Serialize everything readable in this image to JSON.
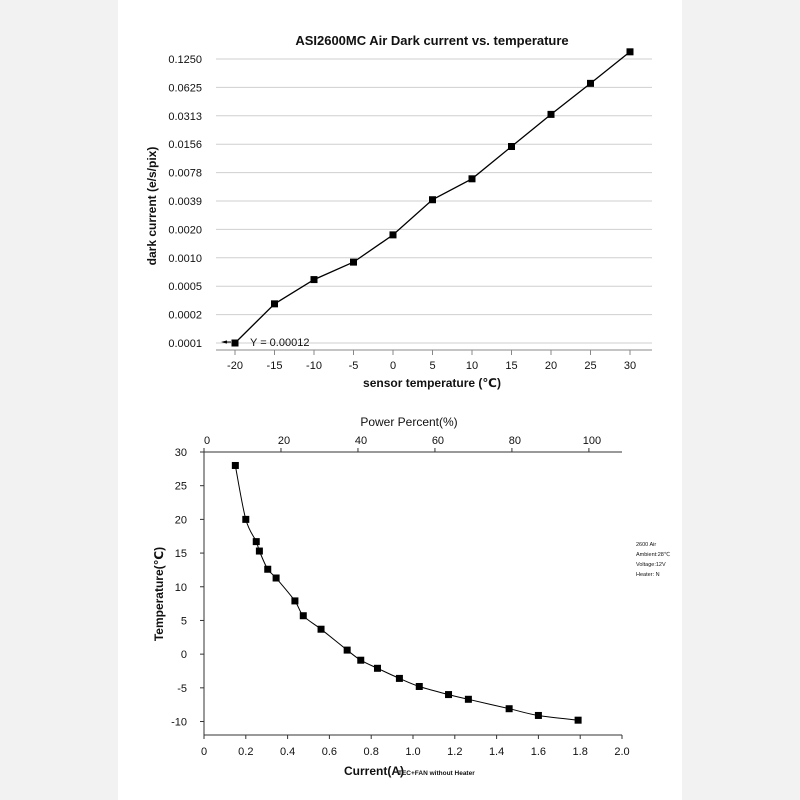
{
  "chart_data": [
    {
      "type": "line",
      "title": "ASI2600MC Air Dark current vs. temperature",
      "xlabel": "sensor temperature (℃)",
      "ylabel": "dark current (e/s/pix)",
      "x_ticks": [
        "-20",
        "-15",
        "-10",
        "-5",
        "0",
        "5",
        "10",
        "15",
        "20",
        "25",
        "30"
      ],
      "y_ticks": [
        "0.0001",
        "0.0002",
        "0.0005",
        "0.0010",
        "0.0020",
        "0.0039",
        "0.0078",
        "0.0156",
        "0.0313",
        "0.0625",
        "0.1250"
      ],
      "y_scale": "log2",
      "grid": "horizontal",
      "x": [
        -20,
        -15,
        -10,
        -5,
        0,
        5,
        10,
        15,
        20,
        25,
        30
      ],
      "y": [
        0.0001,
        0.00026,
        0.00047,
        0.00072,
        0.0014,
        0.0033,
        0.0055,
        0.0121,
        0.0265,
        0.0565,
        0.122
      ],
      "annotation": "Y = 0.00012"
    },
    {
      "type": "scatter",
      "xlabel": "Current(A)",
      "xlabel_note": "TEC+FAN without Heater",
      "ylabel": "Temperature(℃)",
      "top_axis_label": "Power Percent(%)",
      "x_ticks": [
        "0",
        "0.2",
        "0.4",
        "0.6",
        "0.8",
        "1.0",
        "1.2",
        "1.4",
        "1.6",
        "1.8",
        "2.0"
      ],
      "y_ticks": [
        "-10",
        "-5",
        "0",
        "5",
        "10",
        "15",
        "20",
        "25",
        "30"
      ],
      "top_ticks": [
        "0",
        "20",
        "40",
        "60",
        "80",
        "100"
      ],
      "xlim": [
        0,
        2.0
      ],
      "ylim": [
        -12,
        30
      ],
      "top_xlim": [
        0,
        108.6
      ],
      "grid": false,
      "x": [
        0.15,
        0.2,
        0.25,
        0.265,
        0.305,
        0.345,
        0.435,
        0.475,
        0.56,
        0.685,
        0.75,
        0.83,
        0.935,
        1.03,
        1.17,
        1.265,
        1.46,
        1.6,
        1.79
      ],
      "y": [
        28.0,
        20.0,
        16.7,
        15.3,
        12.6,
        11.3,
        7.9,
        5.7,
        3.7,
        0.6,
        -0.9,
        -2.1,
        -3.6,
        -4.8,
        -6.0,
        -6.7,
        -8.1,
        -9.1,
        -9.8
      ],
      "info": [
        "2600 Air",
        "Ambient:28℃",
        "Voltage:12V",
        "Heater: N"
      ]
    }
  ]
}
